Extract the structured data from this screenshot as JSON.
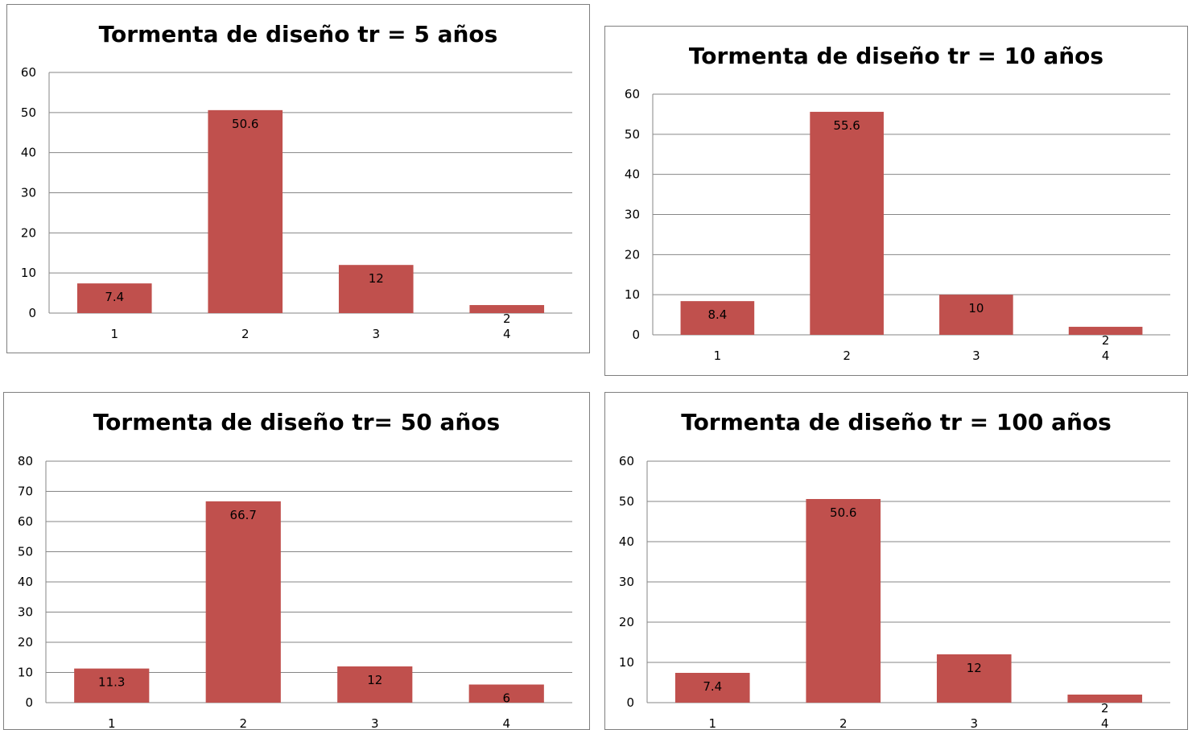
{
  "chart_data": [
    {
      "type": "bar",
      "title": "Tormenta de diseño tr = 5 años",
      "categories": [
        "1",
        "2",
        "3",
        "4"
      ],
      "values": [
        7.4,
        50.6,
        12,
        2
      ],
      "data_labels": [
        "7.4",
        "50.6",
        "12",
        "2"
      ],
      "ylim": [
        0,
        60
      ],
      "yticks": [
        0,
        10,
        20,
        30,
        40,
        50,
        60
      ],
      "grid": true,
      "bar_color": "#c0504d"
    },
    {
      "type": "bar",
      "title": "Tormenta de diseño tr = 10 años",
      "categories": [
        "1",
        "2",
        "3",
        "4"
      ],
      "values": [
        8.4,
        55.6,
        10,
        2
      ],
      "data_labels": [
        "8.4",
        "55.6",
        "10",
        "2"
      ],
      "ylim": [
        0,
        60
      ],
      "yticks": [
        0,
        10,
        20,
        30,
        40,
        50,
        60
      ],
      "grid": true,
      "bar_color": "#c0504d"
    },
    {
      "type": "bar",
      "title": "Tormenta de diseño tr= 50 años",
      "categories": [
        "1",
        "2",
        "3",
        "4"
      ],
      "values": [
        11.3,
        66.7,
        12,
        6
      ],
      "data_labels": [
        "11.3",
        "66.7",
        "12",
        "6"
      ],
      "ylim": [
        0,
        80
      ],
      "yticks": [
        0,
        10,
        20,
        30,
        40,
        50,
        60,
        70,
        80
      ],
      "grid": true,
      "bar_color": "#c0504d"
    },
    {
      "type": "bar",
      "title": "Tormenta de diseño tr = 100 años",
      "categories": [
        "1",
        "2",
        "3",
        "4"
      ],
      "values": [
        7.4,
        50.6,
        12,
        2
      ],
      "data_labels": [
        "7.4",
        "50.6",
        "12",
        "2"
      ],
      "ylim": [
        0,
        60
      ],
      "yticks": [
        0,
        10,
        20,
        30,
        40,
        50,
        60
      ],
      "grid": true,
      "bar_color": "#c0504d"
    }
  ]
}
